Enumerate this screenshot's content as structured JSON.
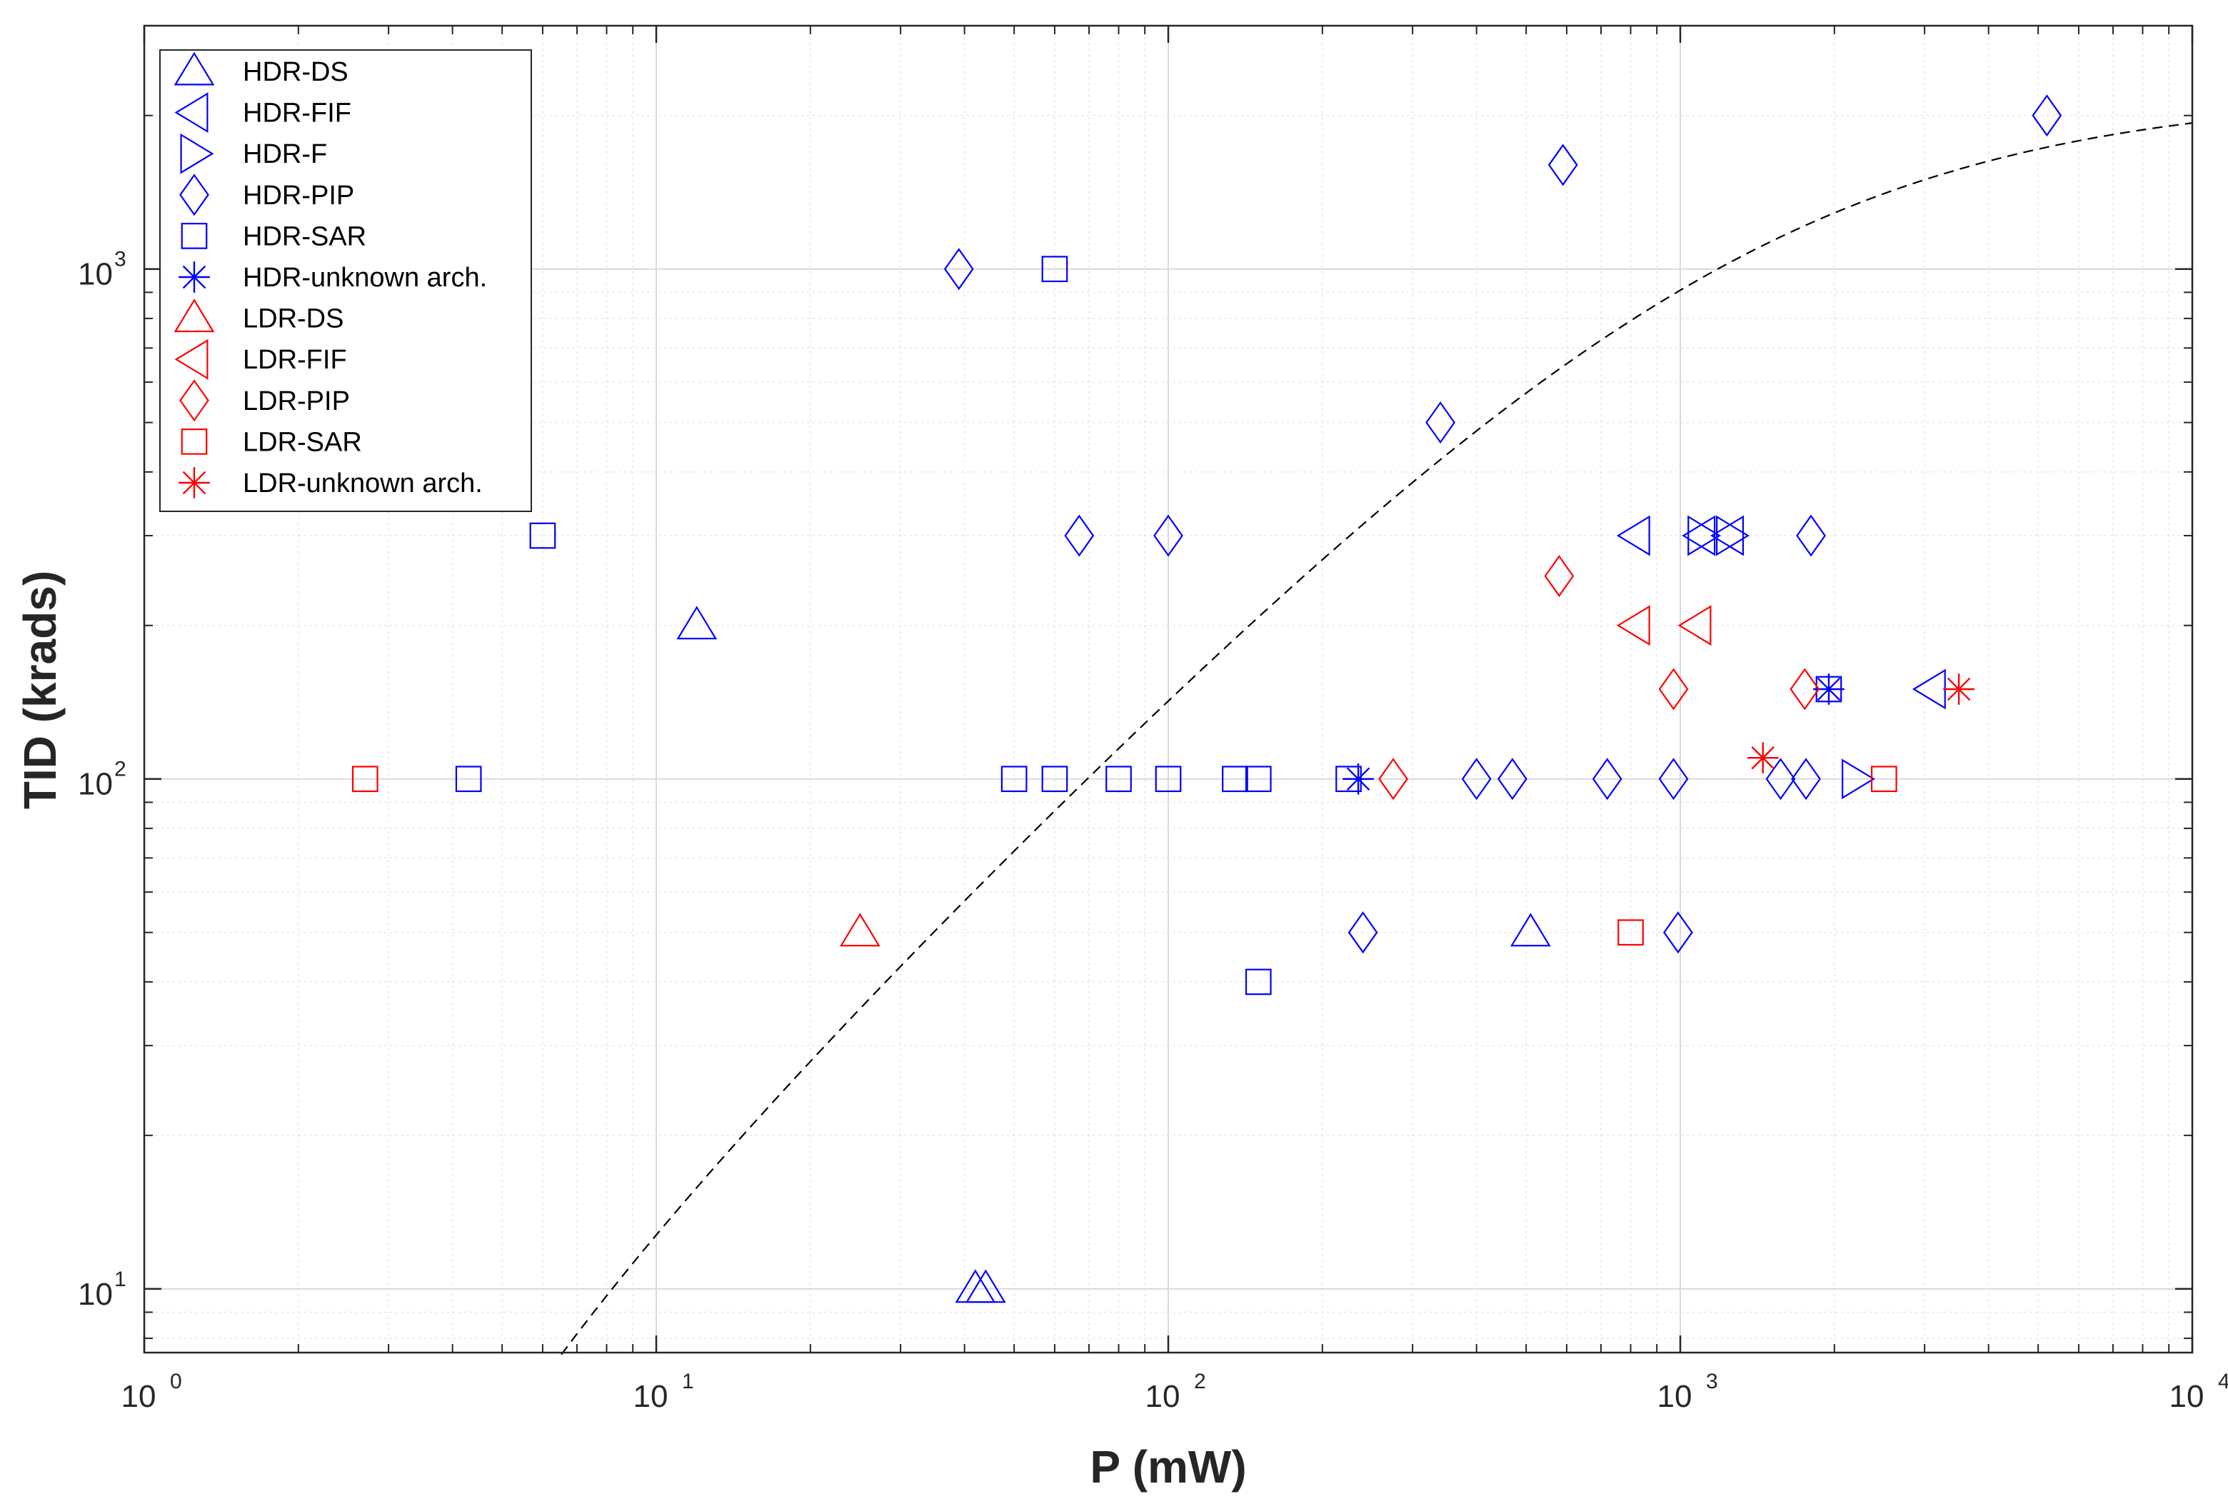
{
  "chart_data": {
    "type": "scatter",
    "title": "",
    "xlabel": "P (mW)",
    "ylabel": "TID (krads)",
    "xscale": "log",
    "yscale": "log",
    "xlim": [
      1,
      10000
    ],
    "ylim": [
      7.5,
      3000
    ],
    "grid": true,
    "minor_grid": true,
    "legend_position": "top-left",
    "x_ticks": [
      {
        "base": "10",
        "exp": "0",
        "value": 1
      },
      {
        "base": "10",
        "exp": "1",
        "value": 10
      },
      {
        "base": "10",
        "exp": "2",
        "value": 100
      },
      {
        "base": "10",
        "exp": "3",
        "value": 1000
      },
      {
        "base": "10",
        "exp": "4",
        "value": 10000
      }
    ],
    "y_ticks": [
      {
        "base": "10",
        "exp": "1",
        "value": 10
      },
      {
        "base": "10",
        "exp": "2",
        "value": 100
      },
      {
        "base": "10",
        "exp": "3",
        "value": 1000
      }
    ],
    "colors": {
      "hdr": "#0000ff",
      "ldr": "#ff0000",
      "fit": "#000000",
      "grid_major": "#d9d9d9",
      "grid_minor": "#e6e6e6"
    },
    "fit_curve": {
      "name": "trend (dashed)",
      "style": "dashed",
      "p_min": 1.7,
      "p_max": 10000
    },
    "series": [
      {
        "name": "HDR-DS",
        "marker": "triangle-up",
        "color": "#0000ff",
        "points": [
          [
            12,
            200
          ],
          [
            42,
            10
          ],
          [
            44,
            10
          ],
          [
            510,
            50
          ]
        ]
      },
      {
        "name": "HDR-FIF",
        "marker": "triangle-left",
        "color": "#0000ff",
        "points": [
          [
            820,
            300
          ],
          [
            1100,
            300
          ],
          [
            1250,
            300
          ],
          [
            3100,
            150
          ]
        ]
      },
      {
        "name": "HDR-F",
        "marker": "triangle-right",
        "color": "#0000ff",
        "points": [
          [
            1100,
            300
          ],
          [
            1250,
            300
          ],
          [
            2200,
            100
          ]
        ]
      },
      {
        "name": "HDR-PIP",
        "marker": "diamond",
        "color": "#0000ff",
        "points": [
          [
            5200,
            2000
          ],
          [
            590,
            1600
          ],
          [
            39,
            1000
          ],
          [
            340,
            500
          ],
          [
            67,
            300
          ],
          [
            100,
            300
          ],
          [
            1800,
            300
          ],
          [
            400,
            100
          ],
          [
            470,
            100
          ],
          [
            720,
            100
          ],
          [
            970,
            100
          ],
          [
            1570,
            100
          ],
          [
            1760,
            100
          ],
          [
            240,
            50
          ],
          [
            990,
            50
          ]
        ]
      },
      {
        "name": "HDR-SAR",
        "marker": "square",
        "color": "#0000ff",
        "points": [
          [
            60,
            1000
          ],
          [
            6,
            300
          ],
          [
            4.3,
            100
          ],
          [
            50,
            100
          ],
          [
            60,
            100
          ],
          [
            80,
            100
          ],
          [
            100,
            100
          ],
          [
            135,
            100
          ],
          [
            150,
            100
          ],
          [
            225,
            100
          ],
          [
            150,
            40
          ],
          [
            1950,
            150
          ]
        ]
      },
      {
        "name": "HDR-unknown arch.",
        "marker": "asterisk",
        "color": "#0000ff",
        "points": [
          [
            235,
            100
          ],
          [
            1950,
            150
          ]
        ]
      },
      {
        "name": "LDR-DS",
        "marker": "triangle-up",
        "color": "#ff0000",
        "points": [
          [
            25,
            50
          ]
        ]
      },
      {
        "name": "LDR-FIF",
        "marker": "triangle-left",
        "color": "#ff0000",
        "points": [
          [
            820,
            200
          ],
          [
            1080,
            200
          ]
        ]
      },
      {
        "name": "LDR-PIP",
        "marker": "diamond",
        "color": "#ff0000",
        "points": [
          [
            580,
            250
          ],
          [
            970,
            150
          ],
          [
            1750,
            150
          ],
          [
            275,
            100
          ]
        ]
      },
      {
        "name": "LDR-SAR",
        "marker": "square",
        "color": "#ff0000",
        "points": [
          [
            2.7,
            100
          ],
          [
            2500,
            100
          ],
          [
            800,
            50
          ]
        ]
      },
      {
        "name": "LDR-unknown arch.",
        "marker": "asterisk",
        "color": "#ff0000",
        "points": [
          [
            3500,
            150
          ],
          [
            1450,
            110
          ]
        ]
      }
    ]
  }
}
